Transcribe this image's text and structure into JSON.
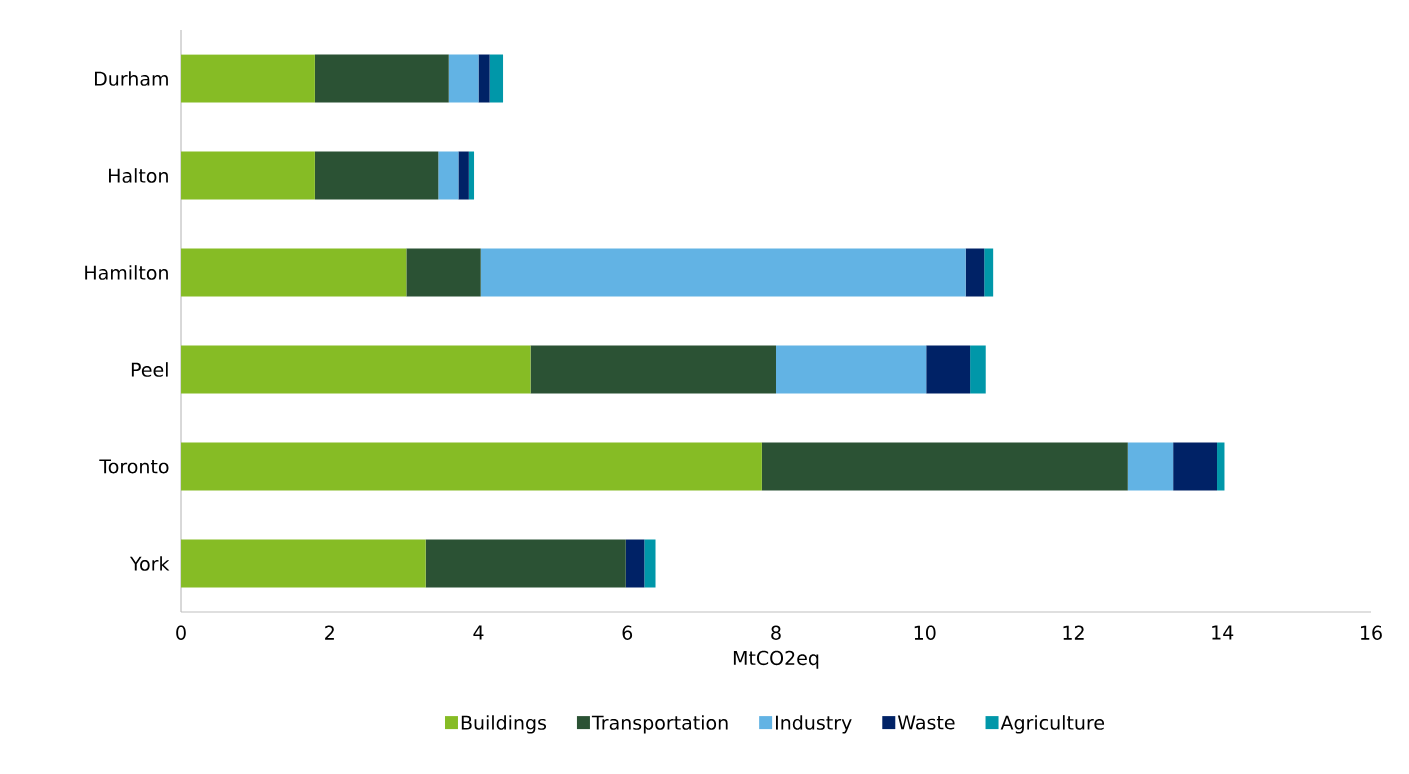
{
  "chart_data": {
    "type": "bar",
    "orientation": "horizontal",
    "stacked": true,
    "xlabel": "MtCO2eq",
    "categories": [
      "Durham",
      "Halton",
      "Hamilton",
      "Peel",
      "Toronto",
      "York"
    ],
    "series": [
      {
        "name": "Buildings",
        "color": "#86bc25",
        "values": [
          1.8,
          1.8,
          3.03,
          4.7,
          7.81,
          3.29
        ]
      },
      {
        "name": "Transportation",
        "color": "#2b5234",
        "values": [
          1.8,
          1.66,
          1.0,
          3.3,
          4.92,
          2.69
        ]
      },
      {
        "name": "Industry",
        "color": "#62b3e4",
        "values": [
          0.4,
          0.27,
          6.52,
          2.02,
          0.61,
          0
        ]
      },
      {
        "name": "Waste",
        "color": "#002266",
        "values": [
          0.15,
          0.14,
          0.25,
          0.59,
          0.59,
          0.25
        ]
      },
      {
        "name": "Agriculture",
        "color": "#0097a9",
        "values": [
          0.18,
          0.07,
          0.12,
          0.21,
          0.1,
          0.15
        ]
      }
    ],
    "xlim": [
      0,
      16
    ],
    "xticks": [
      0,
      2,
      4,
      6,
      8,
      10,
      12,
      14,
      16
    ],
    "grid": false,
    "legend": "bottom"
  }
}
